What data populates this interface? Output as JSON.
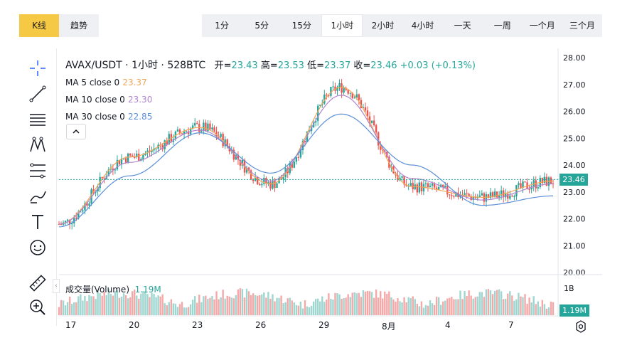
{
  "modes": {
    "kline": "K线",
    "trend": "趋势"
  },
  "intervals": [
    {
      "label": "1分"
    },
    {
      "label": "5分"
    },
    {
      "label": "15分"
    },
    {
      "label": "1小时",
      "active": true
    },
    {
      "label": "2小时"
    },
    {
      "label": "4小时"
    },
    {
      "label": "一天"
    },
    {
      "label": "一周"
    },
    {
      "label": "一个月"
    },
    {
      "label": "三个月"
    }
  ],
  "legend": {
    "symbol": "AVAX/USDT · 1小时 · 528BTC",
    "open_label": "开=",
    "open": "23.43",
    "high_label": "高=",
    "high": "23.53",
    "low_label": "低=",
    "low": "23.37",
    "close_label": "收=",
    "close": "23.46",
    "change": "+0.03 (+0.13%)"
  },
  "mas": [
    {
      "label": "MA 5 close 0",
      "value": "23.37",
      "color": "#f0a657"
    },
    {
      "label": "MA 10 close 0",
      "value": "23.30",
      "color": "#b084cc"
    },
    {
      "label": "MA 30 close 0",
      "value": "22.85",
      "color": "#5b8fd8"
    }
  ],
  "volume": {
    "label": "成交量(Volume)",
    "value": "1.19M",
    "axis_label": "1B",
    "tag": "1.19M"
  },
  "price_tag": "23.46",
  "y_axis": [
    "28.00",
    "27.00",
    "26.00",
    "25.00",
    "24.00",
    "23.00",
    "22.00",
    "21.00",
    "20.00"
  ],
  "x_axis": [
    "17",
    "20",
    "23",
    "26",
    "29",
    "8月",
    "4",
    "7"
  ],
  "colors": {
    "up": "#26a69a",
    "down": "#ef5350",
    "accent": "#f6c944"
  },
  "icons": [
    "crosshair-icon",
    "trend-line-icon",
    "horizontal-lines-icon",
    "pattern-icon",
    "fib-icon",
    "brush-icon",
    "text-icon",
    "emoji-icon",
    "ruler-icon",
    "zoom-in-icon"
  ],
  "chart_data": {
    "type": "line",
    "title": "AVAX/USDT · 1小时 · 528BTC",
    "ylim": [
      20,
      28
    ],
    "x": [
      "17",
      "20",
      "23",
      "26",
      "29",
      "8月",
      "4",
      "7"
    ],
    "series": [
      {
        "name": "MA 5 close 0",
        "values": [
          21.8,
          24.3,
          25.4,
          23.3,
          26.9,
          23.2,
          22.8,
          23.4
        ]
      },
      {
        "name": "MA 10 close 0",
        "values": [
          21.8,
          24.1,
          25.3,
          23.4,
          26.6,
          23.5,
          22.7,
          23.3
        ]
      },
      {
        "name": "MA 30 close 0",
        "values": [
          21.7,
          23.6,
          25.2,
          23.7,
          25.9,
          24.0,
          22.5,
          22.85
        ]
      }
    ],
    "grid": false,
    "legend": "top-left"
  }
}
